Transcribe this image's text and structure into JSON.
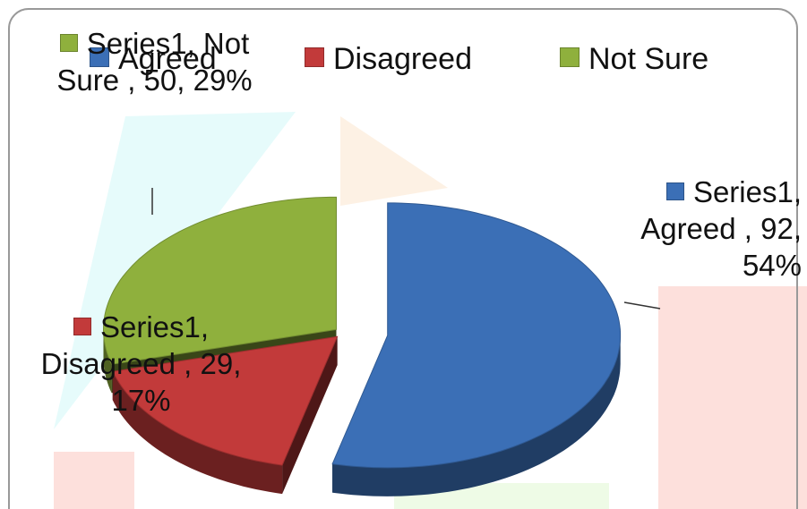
{
  "chart_data": {
    "type": "pie3d",
    "categories": [
      "Agreed",
      "Disagreed",
      "Not Sure"
    ],
    "values": [
      92,
      29,
      50
    ],
    "value_labels": [
      "Series1, Agreed , 92, 54%",
      "Series1, Disagreed , 29, 17%",
      "Series1, Not Sure , 50, 29%"
    ],
    "colors": [
      "#3b6fb6",
      "#c23a3a",
      "#8fb03d"
    ],
    "legend": "top"
  }
}
